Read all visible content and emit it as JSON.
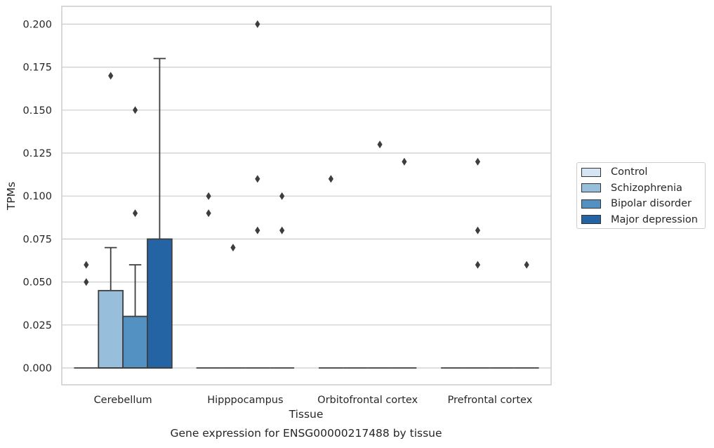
{
  "chart_data": {
    "type": "box",
    "title": "",
    "xlabel": "Tissue",
    "ylabel": "TPMs",
    "caption": "Gene expression for ENSG00000217488 by tissue",
    "ylim": [
      -0.01,
      0.21
    ],
    "yticks": [
      "0.000",
      "0.025",
      "0.050",
      "0.075",
      "0.100",
      "0.125",
      "0.150",
      "0.175",
      "0.200"
    ],
    "grid": "horizontal",
    "legend_position": "right",
    "categories": [
      "Cerebellum",
      "Hipppocampus",
      "Orbitofrontal cortex",
      "Prefrontal cortex"
    ],
    "series": [
      {
        "name": "Control",
        "color": "#d6e5f3",
        "boxes": [
          {
            "q1": 0,
            "median": 0,
            "q3": 0,
            "whisker_low": 0,
            "whisker_high": 0,
            "outliers": [
              0.05,
              0.06
            ]
          },
          {
            "q1": 0,
            "median": 0,
            "q3": 0,
            "whisker_low": 0,
            "whisker_high": 0,
            "outliers": [
              0.09,
              0.1
            ]
          },
          {
            "q1": 0,
            "median": 0,
            "q3": 0,
            "whisker_low": 0,
            "whisker_high": 0,
            "outliers": [
              0.11
            ]
          },
          {
            "q1": 0,
            "median": 0,
            "q3": 0,
            "whisker_low": 0,
            "whisker_high": 0,
            "outliers": []
          }
        ]
      },
      {
        "name": "Schizophrenia",
        "color": "#97bfdb",
        "boxes": [
          {
            "q1": 0,
            "median": 0,
            "q3": 0.045,
            "whisker_low": 0,
            "whisker_high": 0.07,
            "outliers": [
              0.17
            ]
          },
          {
            "q1": 0,
            "median": 0,
            "q3": 0,
            "whisker_low": 0,
            "whisker_high": 0,
            "outliers": [
              0.07
            ]
          },
          {
            "q1": 0,
            "median": 0,
            "q3": 0,
            "whisker_low": 0,
            "whisker_high": 0,
            "outliers": []
          },
          {
            "q1": 0,
            "median": 0,
            "q3": 0,
            "whisker_low": 0,
            "whisker_high": 0,
            "outliers": [
              0.06,
              0.08,
              0.12
            ]
          }
        ]
      },
      {
        "name": "Bipolar disorder",
        "color": "#5291c1",
        "boxes": [
          {
            "q1": 0,
            "median": 0,
            "q3": 0.03,
            "whisker_low": 0,
            "whisker_high": 0.06,
            "outliers": [
              0.09,
              0.15
            ]
          },
          {
            "q1": 0,
            "median": 0,
            "q3": 0,
            "whisker_low": 0,
            "whisker_high": 0,
            "outliers": [
              0.08,
              0.11,
              0.2
            ]
          },
          {
            "q1": 0,
            "median": 0,
            "q3": 0,
            "whisker_low": 0,
            "whisker_high": 0,
            "outliers": [
              0.13
            ]
          },
          {
            "q1": 0,
            "median": 0,
            "q3": 0,
            "whisker_low": 0,
            "whisker_high": 0,
            "outliers": []
          }
        ]
      },
      {
        "name": "Major depression",
        "color": "#2464a5",
        "boxes": [
          {
            "q1": 0,
            "median": 0,
            "q3": 0.075,
            "whisker_low": 0,
            "whisker_high": 0.18,
            "outliers": []
          },
          {
            "q1": 0,
            "median": 0,
            "q3": 0,
            "whisker_low": 0,
            "whisker_high": 0,
            "outliers": [
              0.08,
              0.1
            ]
          },
          {
            "q1": 0,
            "median": 0,
            "q3": 0,
            "whisker_low": 0,
            "whisker_high": 0,
            "outliers": [
              0.12
            ]
          },
          {
            "q1": 0,
            "median": 0,
            "q3": 0,
            "whisker_low": 0,
            "whisker_high": 0,
            "outliers": [
              0.06
            ]
          }
        ]
      }
    ]
  }
}
